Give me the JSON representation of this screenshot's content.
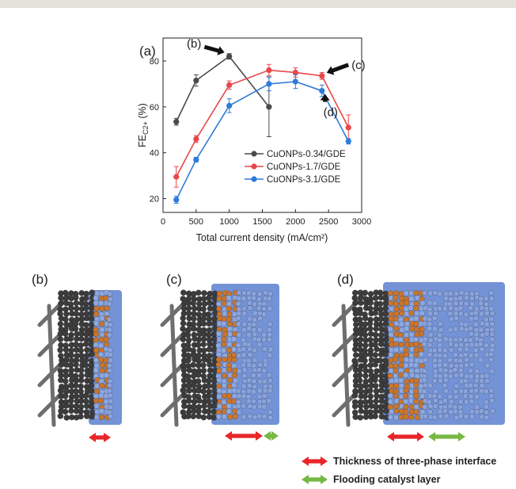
{
  "chart_data": {
    "type": "line",
    "panel_label": "(a)",
    "xlabel": "Total current density (mA/cm²)",
    "ylabel_main": "FE",
    "ylabel_sub": "C2+",
    "ylabel_unit": " (%)",
    "xlim": [
      0,
      3000
    ],
    "ylim": [
      14,
      90
    ],
    "x_ticks": [
      0,
      500,
      1000,
      1500,
      2000,
      2500,
      3000
    ],
    "y_ticks": [
      20,
      40,
      60,
      80
    ],
    "grid": false,
    "legend_position": "lower-middle",
    "series": [
      {
        "name": "CuONPs-0.34/GDE",
        "color": "#4a4a4a",
        "points": [
          {
            "x": 200,
            "y": 53.5,
            "err": 1.5
          },
          {
            "x": 500,
            "y": 71.5,
            "err": 2.5
          },
          {
            "x": 1000,
            "y": 82,
            "err": 1.2
          },
          {
            "x": 1600,
            "y": 60,
            "err": 13
          }
        ]
      },
      {
        "name": "CuONPs-1.7/GDE",
        "color": "#e8474a",
        "points": [
          {
            "x": 200,
            "y": 29.5,
            "err": 4.5
          },
          {
            "x": 500,
            "y": 46,
            "err": 1.5
          },
          {
            "x": 1000,
            "y": 69.5,
            "err": 1.8
          },
          {
            "x": 1600,
            "y": 76,
            "err": 2.5
          },
          {
            "x": 2000,
            "y": 75,
            "err": 2
          },
          {
            "x": 2400,
            "y": 73.5,
            "err": 1.5
          },
          {
            "x": 2800,
            "y": 51,
            "err": 5.5
          }
        ]
      },
      {
        "name": "CuONPs-3.1/GDE",
        "color": "#2e7bd8",
        "points": [
          {
            "x": 200,
            "y": 19.5,
            "err": 1.5
          },
          {
            "x": 500,
            "y": 37,
            "err": 1
          },
          {
            "x": 1000,
            "y": 60.5,
            "err": 3
          },
          {
            "x": 1600,
            "y": 70,
            "err": 3
          },
          {
            "x": 2000,
            "y": 71,
            "err": 3
          },
          {
            "x": 2400,
            "y": 67,
            "err": 2.5
          },
          {
            "x": 2800,
            "y": 45,
            "err": 1.2
          }
        ]
      }
    ],
    "annotations": [
      {
        "label": "(b)",
        "x": 1000,
        "y": 82
      },
      {
        "label": "(c)",
        "x": 2400,
        "y": 73.5
      },
      {
        "label": "(d)",
        "x": 2400,
        "y": 67
      }
    ]
  },
  "panels": [
    {
      "label": "(b)"
    },
    {
      "label": "(c)"
    },
    {
      "label": "(d)"
    }
  ],
  "legend": {
    "three_phase": "Thickness of three-phase interface",
    "flooding": "Flooding catalyst layer",
    "three_phase_color": "#e8262a",
    "flooding_color": "#76b843"
  },
  "colors": {
    "electrolyte": "#7393d6",
    "carbon_particle": "#3c3c3c",
    "copper_particle": "#c9762e",
    "fiber": "#6e6e6e"
  }
}
